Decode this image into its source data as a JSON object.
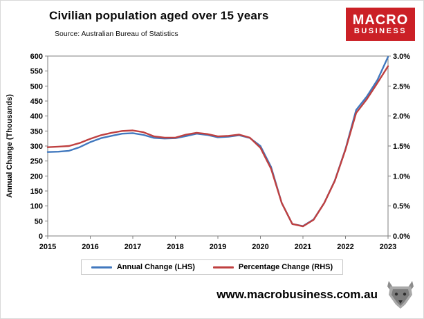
{
  "header": {
    "title": "Civilian population aged over 15 years",
    "source": "Source: Australian Bureau of Statistics",
    "logo": {
      "line1": "MACRO",
      "line2": "BUSINESS",
      "bg_color": "#cb2026"
    }
  },
  "chart_data": {
    "type": "line",
    "title": "Civilian population aged over 15 years",
    "x": [
      2015.0,
      2015.25,
      2015.5,
      2015.75,
      2016.0,
      2016.25,
      2016.5,
      2016.75,
      2017.0,
      2017.25,
      2017.5,
      2017.75,
      2018.0,
      2018.25,
      2018.5,
      2018.75,
      2019.0,
      2019.25,
      2019.5,
      2019.75,
      2020.0,
      2020.25,
      2020.5,
      2020.75,
      2021.0,
      2021.25,
      2021.5,
      2021.75,
      2022.0,
      2022.25,
      2022.5,
      2022.75,
      2023.0
    ],
    "series": [
      {
        "name": "Annual Change (LHS)",
        "axis": "left",
        "color": "#4178be",
        "values": [
          280,
          281,
          284,
          296,
          313,
          326,
          334,
          341,
          343,
          337,
          327,
          325,
          326,
          333,
          341,
          337,
          329,
          331,
          336,
          327,
          300,
          230,
          110,
          40,
          33,
          55,
          110,
          185,
          290,
          420,
          465,
          520,
          597
        ]
      },
      {
        "name": "Percentage Change (RHS)",
        "axis": "right",
        "color": "#bf4040",
        "values": [
          1.48,
          1.49,
          1.5,
          1.55,
          1.62,
          1.68,
          1.72,
          1.75,
          1.76,
          1.73,
          1.66,
          1.64,
          1.64,
          1.69,
          1.72,
          1.7,
          1.66,
          1.67,
          1.69,
          1.64,
          1.47,
          1.12,
          0.55,
          0.2,
          0.16,
          0.27,
          0.55,
          0.92,
          1.44,
          2.05,
          2.28,
          2.55,
          2.83
        ]
      }
    ],
    "left_axis": {
      "label": "Annual Change (Thousands)",
      "min": 0,
      "max": 600,
      "ticks": [
        0,
        50,
        100,
        150,
        200,
        250,
        300,
        350,
        400,
        450,
        500,
        550,
        600
      ]
    },
    "right_axis": {
      "min": 0,
      "max": 3,
      "ticks": [
        0,
        0.5,
        1,
        1.5,
        2,
        2.5,
        3
      ],
      "tick_labels": [
        "0.0%",
        "0.5%",
        "1.0%",
        "1.5%",
        "2.0%",
        "2.5%",
        "3.0%"
      ]
    },
    "x_axis": {
      "min": 2015,
      "max": 2023,
      "ticks": [
        2015,
        2016,
        2017,
        2018,
        2019,
        2020,
        2021,
        2022,
        2023
      ]
    },
    "legend": [
      "Annual Change (LHS)",
      "Percentage Change (RHS)"
    ],
    "grid": false,
    "legend_position": "bottom"
  },
  "footer": {
    "website": "www.macrobusiness.com.au"
  }
}
